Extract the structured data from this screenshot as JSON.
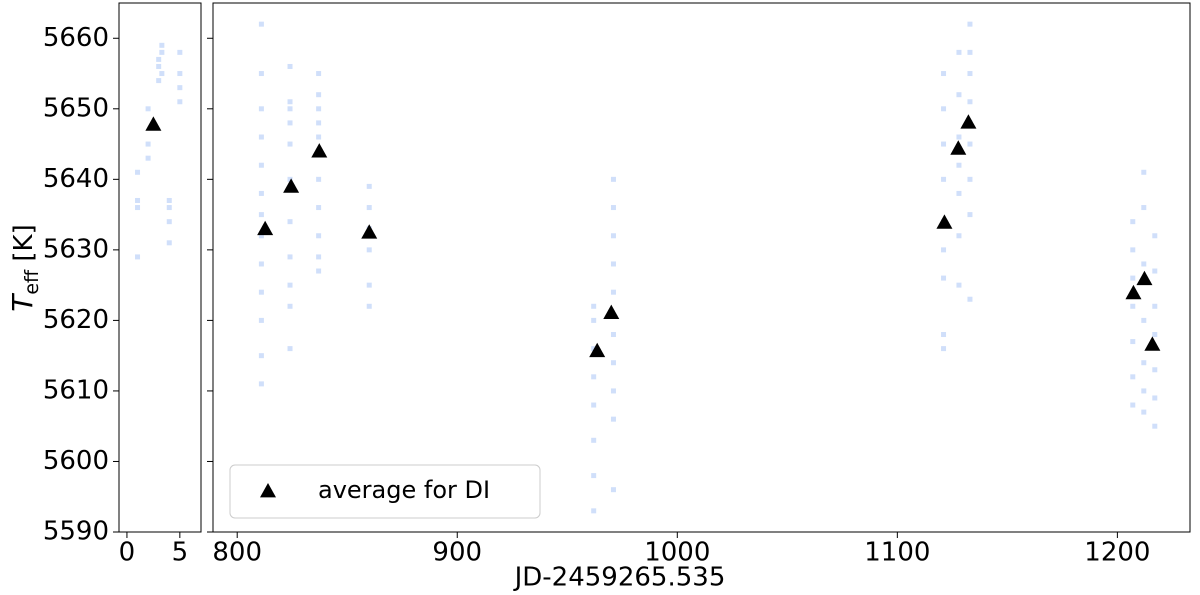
{
  "chart_data": [
    {
      "type": "scatter",
      "ylabel": {
        "main": "T",
        "sub": "eff",
        "rest": " [K]"
      },
      "xlim": [
        -0.75,
        7
      ],
      "xticks": [
        0,
        5
      ],
      "ylim": [
        5590,
        5665
      ],
      "yticks": [
        5590,
        5600,
        5610,
        5620,
        5630,
        5640,
        5650,
        5660
      ],
      "series": [
        {
          "color": "#6495ed",
          "marker": "square",
          "x": [
            1,
            1,
            1,
            1,
            2,
            2,
            2,
            3,
            3,
            3,
            3.3,
            3.3,
            3.3,
            4,
            4,
            4,
            4,
            5,
            5,
            5,
            5
          ],
          "y": [
            5629,
            5636,
            5637,
            5641,
            5643,
            5645,
            5650,
            5654,
            5656,
            5657,
            5658,
            5655,
            5659,
            5631,
            5634,
            5636,
            5637,
            5651,
            5653,
            5655,
            5658
          ]
        },
        {
          "color": "#000000",
          "marker": "triangle",
          "x": [
            2.5
          ],
          "y": [
            5647.8
          ]
        }
      ]
    },
    {
      "type": "scatter",
      "sharey": true,
      "xlabel": "JD-2459265.535",
      "xlim": [
        789,
        1233
      ],
      "xticks": [
        800,
        900,
        1000,
        1100,
        1200
      ],
      "ylim": [
        5590,
        5665
      ],
      "legend": "lower left",
      "series": [
        {
          "color": "#6495ed",
          "marker": "square",
          "x": [
            811,
            811,
            811,
            811,
            811,
            811,
            811,
            811,
            811,
            811,
            811,
            811,
            811,
            824,
            824,
            824,
            824,
            824,
            824,
            824,
            824,
            824,
            824,
            824,
            837,
            837,
            837,
            837,
            837,
            837,
            837,
            837,
            837,
            837,
            837,
            860,
            860,
            860,
            860,
            860,
            860,
            962,
            962,
            962,
            962,
            962,
            962,
            962,
            962,
            971,
            971,
            971,
            971,
            971,
            971,
            971,
            971,
            971,
            971,
            1121,
            1121,
            1121,
            1121,
            1121,
            1121,
            1121,
            1121,
            1121,
            1128,
            1128,
            1128,
            1128,
            1128,
            1128,
            1128,
            1133,
            1133,
            1133,
            1133,
            1133,
            1133,
            1133,
            1133,
            1133,
            1207,
            1207,
            1207,
            1207,
            1207,
            1207,
            1207,
            1212,
            1212,
            1212,
            1212,
            1212,
            1212,
            1212,
            1217,
            1217,
            1217,
            1217,
            1217,
            1217,
            1217
          ],
          "y": [
            5611,
            5615,
            5620,
            5624,
            5628,
            5632,
            5635,
            5638,
            5642,
            5646,
            5650,
            5655,
            5662,
            5616,
            5622,
            5625,
            5629,
            5634,
            5640,
            5645,
            5648,
            5650,
            5651,
            5656,
            5627,
            5629,
            5632,
            5636,
            5640,
            5644,
            5646,
            5648,
            5650,
            5652,
            5655,
            5622,
            5625,
            5630,
            5633,
            5636,
            5639,
            5593,
            5598,
            5603,
            5608,
            5612,
            5616,
            5620,
            5622,
            5596,
            5606,
            5610,
            5614,
            5618,
            5624,
            5628,
            5632,
            5636,
            5640,
            5616,
            5618,
            5626,
            5630,
            5634,
            5640,
            5645,
            5650,
            5655,
            5625,
            5632,
            5638,
            5642,
            5646,
            5652,
            5658,
            5623,
            5635,
            5640,
            5645,
            5648,
            5651,
            5655,
            5658,
            5662,
            5608,
            5612,
            5617,
            5622,
            5626,
            5630,
            5634,
            5607,
            5610,
            5614,
            5620,
            5628,
            5636,
            5641,
            5605,
            5609,
            5613,
            5618,
            5622,
            5627,
            5632
          ]
        },
        {
          "name": "average for DI",
          "color": "#000000",
          "marker": "triangle",
          "x": [
            812.7,
            824.5,
            837.3,
            860,
            963.6,
            970,
            1121.4,
            1127.7,
            1132.3,
            1207.3,
            1212.3,
            1215.9
          ],
          "y": [
            5633.0,
            5639.0,
            5644.0,
            5632.5,
            5615.7,
            5621.1,
            5633.9,
            5644.4,
            5648.1,
            5623.9,
            5625.9,
            5616.6
          ]
        }
      ]
    }
  ]
}
